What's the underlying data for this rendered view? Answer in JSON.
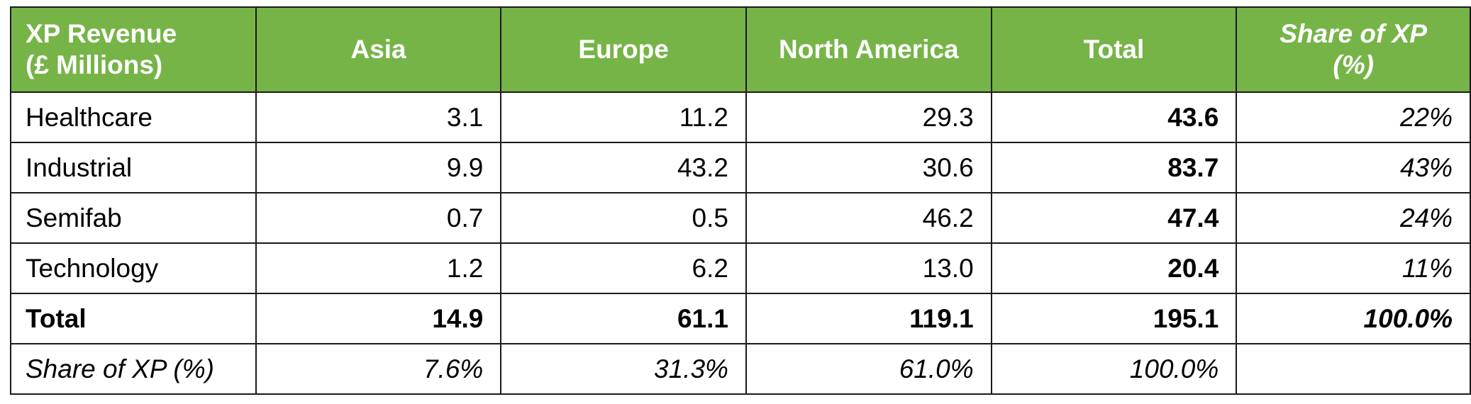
{
  "table": {
    "header_colors": {
      "background": "#76b447",
      "text": "#ffffff"
    },
    "headers": [
      [
        "XP Revenue",
        "(£ Millions)"
      ],
      [
        "Asia"
      ],
      [
        "Europe"
      ],
      [
        "North America"
      ],
      [
        "Total"
      ],
      [
        "Share of XP",
        "(%)"
      ]
    ],
    "rows": [
      {
        "label": "Healthcare",
        "asia": "3.1",
        "europe": "11.2",
        "north_america": "29.3",
        "total": "43.6",
        "share": "22%"
      },
      {
        "label": "Industrial",
        "asia": "9.9",
        "europe": "43.2",
        "north_america": "30.6",
        "total": "83.7",
        "share": "43%"
      },
      {
        "label": "Semifab",
        "asia": "0.7",
        "europe": "0.5",
        "north_america": "46.2",
        "total": "47.4",
        "share": "24%"
      },
      {
        "label": "Technology",
        "asia": "1.2",
        "europe": "6.2",
        "north_america": "13.0",
        "total": "20.4",
        "share": "11%"
      }
    ],
    "total_row": {
      "label": "Total",
      "asia": "14.9",
      "europe": "61.1",
      "north_america": "119.1",
      "total": "195.1",
      "share": "100.0%"
    },
    "share_row": {
      "label": "Share of XP (%)",
      "asia": "7.6%",
      "europe": "31.3%",
      "north_america": "61.0%",
      "total": "100.0%",
      "share": ""
    }
  }
}
